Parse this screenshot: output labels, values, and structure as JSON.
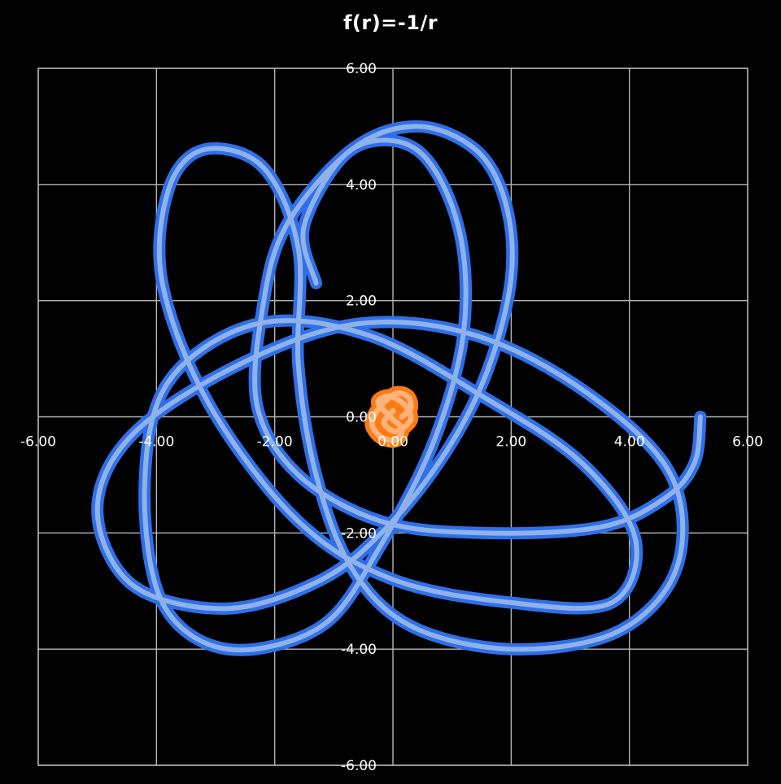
{
  "chart_data": {
    "type": "scatter",
    "title": "f(r)=-1/r",
    "xlabel": "",
    "ylabel": "",
    "xlim": [
      -6,
      6
    ],
    "ylim": [
      -6,
      6
    ],
    "x_ticks": [
      -6,
      -4,
      -2,
      0,
      2,
      4,
      6
    ],
    "y_ticks": [
      -6,
      -4,
      -2,
      0,
      2,
      4,
      6
    ],
    "x_tick_labels": [
      "-6.00",
      "-4.00",
      "-2.00",
      "0.00",
      "2.00",
      "4.00",
      "6.00"
    ],
    "y_tick_labels": [
      "-6.00",
      "-4.00",
      "-2.00",
      "0.00",
      "2.00",
      "4.00",
      "6.00"
    ],
    "grid": true,
    "legend": "none",
    "background": "#000000",
    "grid_color": "#b4b4b4",
    "text_color": "#ffffff",
    "series": [
      {
        "role": "orbit",
        "color": "#2f6fe8",
        "highlight_color": "#8fb2ea",
        "points": [
          [
            5.2,
            0.0
          ],
          [
            5.1,
            -0.8
          ],
          [
            4.6,
            -1.4
          ],
          [
            3.5,
            -1.9
          ],
          [
            1.5,
            -2.0
          ],
          [
            -0.2,
            -1.8
          ],
          [
            -1.6,
            -1.0
          ],
          [
            -2.3,
            0.2
          ],
          [
            -2.2,
            1.9
          ],
          [
            -1.8,
            3.3
          ],
          [
            -0.7,
            4.6
          ],
          [
            0.4,
            5.0
          ],
          [
            1.4,
            4.6
          ],
          [
            1.9,
            3.7
          ],
          [
            2.0,
            2.4
          ],
          [
            1.6,
            0.8
          ],
          [
            0.9,
            -0.6
          ],
          [
            -0.1,
            -1.9
          ],
          [
            -1.2,
            -2.8
          ],
          [
            -2.8,
            -3.3
          ],
          [
            -4.4,
            -2.9
          ],
          [
            -5.0,
            -1.6
          ],
          [
            -4.4,
            -0.3
          ],
          [
            -2.6,
            0.9
          ],
          [
            -0.6,
            1.6
          ],
          [
            1.4,
            1.4
          ],
          [
            3.3,
            0.4
          ],
          [
            4.7,
            -1.0
          ],
          [
            4.8,
            -2.6
          ],
          [
            3.8,
            -3.7
          ],
          [
            2.0,
            -4.0
          ],
          [
            0.3,
            -3.6
          ],
          [
            -0.7,
            -2.6
          ],
          [
            -1.3,
            -1.0
          ],
          [
            -1.6,
            0.9
          ],
          [
            -1.6,
            2.9
          ],
          [
            -2.2,
            4.3
          ],
          [
            -3.2,
            4.6
          ],
          [
            -3.8,
            3.9
          ],
          [
            -3.9,
            2.3
          ],
          [
            -3.1,
            0.2
          ],
          [
            -1.6,
            -1.8
          ],
          [
            0.0,
            -2.8
          ],
          [
            2.0,
            -3.2
          ],
          [
            3.7,
            -3.2
          ],
          [
            4.1,
            -2.1
          ],
          [
            3.2,
            -0.8
          ],
          [
            1.6,
            0.3
          ],
          [
            -0.4,
            1.4
          ],
          [
            -2.3,
            1.6
          ],
          [
            -3.8,
            0.6
          ],
          [
            -4.2,
            -1.2
          ],
          [
            -3.9,
            -3.2
          ],
          [
            -2.8,
            -4.0
          ],
          [
            -1.2,
            -3.6
          ],
          [
            -0.2,
            -2.2
          ],
          [
            0.7,
            -0.4
          ],
          [
            1.2,
            1.5
          ],
          [
            1.1,
            3.3
          ],
          [
            0.4,
            4.6
          ],
          [
            -0.7,
            4.6
          ],
          [
            -1.5,
            3.3
          ],
          [
            -1.3,
            2.3
          ]
        ]
      },
      {
        "role": "central-body",
        "color": "#ff7a12",
        "highlight_color": "#ffb27a",
        "points": [
          [
            0.15,
            0.0
          ],
          [
            0.3,
            0.15
          ],
          [
            0.25,
            0.35
          ],
          [
            0.05,
            0.4
          ],
          [
            -0.15,
            0.25
          ],
          [
            -0.3,
            0.05
          ],
          [
            -0.35,
            -0.15
          ],
          [
            -0.2,
            -0.35
          ],
          [
            0.05,
            -0.4
          ],
          [
            0.15,
            -0.2
          ],
          [
            -0.05,
            0.0
          ],
          [
            -0.25,
            0.25
          ],
          [
            -0.05,
            0.35
          ],
          [
            0.2,
            0.2
          ],
          [
            0.3,
            -0.05
          ],
          [
            0.05,
            -0.25
          ],
          [
            -0.15,
            -0.1
          ],
          [
            0.0,
            0.1
          ]
        ]
      }
    ]
  }
}
